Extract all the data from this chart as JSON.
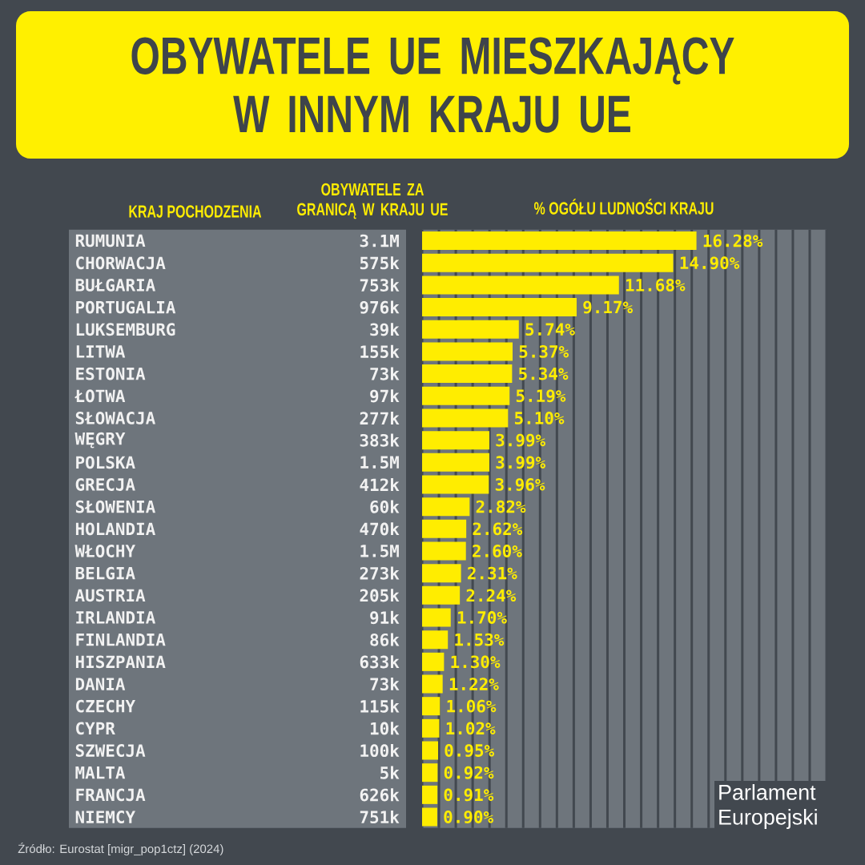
{
  "chart_data": [
    {
      "type": "other",
      "title": "OBYWATELE UE MIESZKAJĄCY W INNYM KRAJU UE",
      "ylabel": "KRAJ POCHODZENIA",
      "xlabel": "OBYWATELE ZA GRANICĄ W KRAJU UE",
      "categories": [
        "RUMUNIA",
        "CHORWACJA",
        "BUŁGARIA",
        "PORTUGALIA",
        "LUKSEMBURG",
        "LITWA",
        "ESTONIA",
        "ŁOTWA",
        "SŁOWACJA",
        "WĘGRY",
        "POLSKA",
        "GRECJA",
        "SŁOWENIA",
        "HOLANDIA",
        "WŁOCHY",
        "BELGIA",
        "AUSTRIA",
        "IRLANDIA",
        "FINLANDIA",
        "HISZPANIA",
        "DANIA",
        "CZECHY",
        "CYPR",
        "SZWECJA",
        "MALTA",
        "FRANCJA",
        "NIEMCY"
      ],
      "value_labels": [
        "3.1M",
        "575k",
        "753k",
        "976k",
        "39k",
        "155k",
        "73k",
        "97k",
        "277k",
        "383k",
        "1.5M",
        "412k",
        "60k",
        "470k",
        "1.5M",
        "273k",
        "205k",
        "91k",
        "86k",
        "633k",
        "73k",
        "115k",
        "10k",
        "100k",
        "5k",
        "626k",
        "751k"
      ],
      "annotations": [
        "Źródło: Eurostat [migr_pop1ctz] (2024)"
      ]
    },
    {
      "type": "bar",
      "orientation": "horizontal",
      "title": "% OGÓŁU LUDNOŚCI KRAJU",
      "categories": [
        null,
        null,
        null,
        null,
        null,
        null,
        null,
        null,
        null,
        null,
        null,
        null,
        null,
        null,
        null,
        null,
        null,
        null,
        null,
        null,
        null,
        null,
        null,
        null,
        null,
        null,
        null
      ],
      "values": [
        16.28,
        14.9,
        11.68,
        9.17,
        5.74,
        5.37,
        5.34,
        5.19,
        5.1,
        3.99,
        3.99,
        3.96,
        2.82,
        2.62,
        2.6,
        2.31,
        2.24,
        1.7,
        1.53,
        1.3,
        1.22,
        1.06,
        1.02,
        0.95,
        0.92,
        0.91,
        0.9
      ],
      "value_labels": [
        "16.28%",
        "14.90%",
        "11.68%",
        "9.17%",
        "5.74%",
        "5.37%",
        "5.34%",
        "5.19%",
        "5.10%",
        "3.99%",
        "3.99%",
        "3.96%",
        "2.82%",
        "2.62%",
        "2.60%",
        "2.31%",
        "2.24%",
        "1.70%",
        "1.53%",
        "1.30%",
        "1.22%",
        "1.06%",
        "1.02%",
        "0.95%",
        "0.92%",
        "0.91%",
        "0.90%"
      ],
      "color": "#ffed00",
      "xlim": [
        0,
        24
      ],
      "xticks": [
        {
          "value": 0,
          "label": null
        },
        {
          "value": 1,
          "label": null
        },
        {
          "value": 2,
          "label": null
        },
        {
          "value": 3,
          "label": null
        },
        {
          "value": 4,
          "label": null
        },
        {
          "value": 5,
          "label": null
        },
        {
          "value": 6,
          "label": null
        },
        {
          "value": 7,
          "label": null
        },
        {
          "value": 8,
          "label": null
        },
        {
          "value": 9,
          "label": null
        },
        {
          "value": 10,
          "label": null
        },
        {
          "value": 11,
          "label": null
        },
        {
          "value": 12,
          "label": null
        },
        {
          "value": 13,
          "label": null
        },
        {
          "value": 14,
          "label": null
        },
        {
          "value": 15,
          "label": null
        },
        {
          "value": 16,
          "label": null
        },
        {
          "value": 17,
          "label": null
        },
        {
          "value": 18,
          "label": null
        },
        {
          "value": 19,
          "label": null
        },
        {
          "value": 20,
          "label": null
        },
        {
          "value": 21,
          "label": null
        },
        {
          "value": 22,
          "label": null
        },
        {
          "value": 23,
          "label": null
        },
        {
          "value": 24,
          "label": null
        }
      ],
      "grid": true,
      "annotations": [
        "Parlament Europejski"
      ]
    }
  ]
}
